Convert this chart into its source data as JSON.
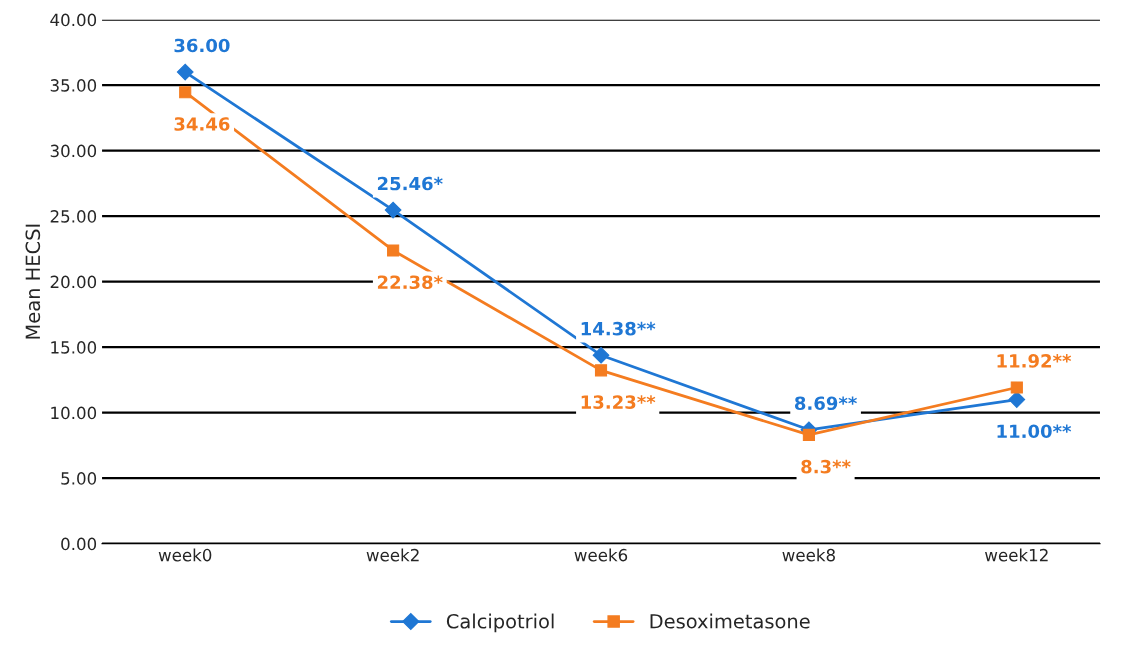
{
  "chart_data": {
    "type": "line",
    "ylabel": "Mean HECSI",
    "categories": [
      "week0",
      "week2",
      "week6",
      "week8",
      "week12"
    ],
    "series": [
      {
        "name": "Calcipotriol",
        "color": "#1f77d4",
        "values": [
          36.0,
          25.46,
          14.38,
          8.69,
          11.0
        ],
        "marker": "diamond",
        "value_labels": [
          "36.00",
          "25.46*",
          "14.38**",
          "8.69**",
          "11.00**"
        ]
      },
      {
        "name": "Desoximetasone",
        "color": "#f47c20",
        "values": [
          34.46,
          22.38,
          13.23,
          8.3,
          11.92
        ],
        "marker": "square",
        "value_labels": [
          "34.46",
          "22.38*",
          "13.23**",
          "8.3**",
          "11.92**"
        ]
      }
    ],
    "ylim": [
      0,
      40
    ],
    "yticks": [
      {
        "value": 0,
        "label": "0.00"
      },
      {
        "value": 5,
        "label": "5.00"
      },
      {
        "value": 10,
        "label": "10.00"
      },
      {
        "value": 15,
        "label": "15.00"
      },
      {
        "value": 20,
        "label": "20.00"
      },
      {
        "value": 25,
        "label": "25.00"
      },
      {
        "value": 30,
        "label": "30.00"
      },
      {
        "value": 35,
        "label": "35.00"
      },
      {
        "value": 40,
        "label": "40.00"
      }
    ],
    "grid": "y",
    "legend": "bottom",
    "line_style": "solid"
  }
}
